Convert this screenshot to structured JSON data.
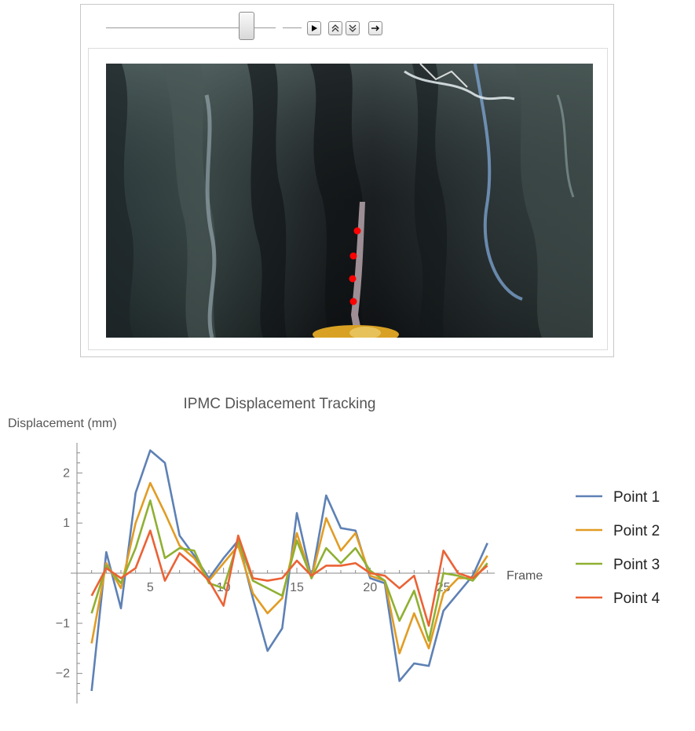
{
  "manipulate": {
    "slider_value_fraction": 0.83,
    "buttons": {
      "play_icon": "play-icon",
      "faster_icon": "double-chevron-up-icon",
      "slower_icon": "double-chevron-down-icon",
      "step_icon": "right-arrow-icon"
    }
  },
  "video": {
    "tracking_marker_color": "#ff0000",
    "tracked_points": 4
  },
  "chart_data": {
    "type": "line",
    "title": "IPMC Displacement Tracking",
    "ylabel": "Displacement (mm)",
    "xlabel": "Frame",
    "xlim": [
      0,
      28.5
    ],
    "ylim": [
      -2.6,
      2.6
    ],
    "xticks": [
      5,
      10,
      15,
      20,
      25
    ],
    "yticks": [
      -2,
      -1,
      1,
      2
    ],
    "legend_position": "right",
    "x": [
      1,
      2,
      3,
      4,
      5,
      6,
      7,
      8,
      9,
      10,
      11,
      12,
      13,
      14,
      15,
      16,
      17,
      18,
      19,
      20,
      21,
      22,
      23,
      24,
      25,
      26,
      27,
      28
    ],
    "series": [
      {
        "name": "Point 1",
        "color": "#5e81b5",
        "values": [
          -2.35,
          0.42,
          -0.7,
          1.6,
          2.45,
          2.2,
          0.75,
          0.35,
          -0.1,
          0.3,
          0.65,
          -0.5,
          -1.55,
          -1.1,
          1.2,
          -0.1,
          1.55,
          0.9,
          0.85,
          -0.1,
          -0.2,
          -2.15,
          -1.8,
          -1.85,
          -0.75,
          -0.4,
          -0.05,
          0.6
        ]
      },
      {
        "name": "Point 2",
        "color": "#e19c24",
        "values": [
          -1.4,
          0.2,
          -0.3,
          1.0,
          1.8,
          1.2,
          0.55,
          0.3,
          -0.15,
          0.2,
          0.55,
          -0.4,
          -0.8,
          -0.5,
          0.8,
          -0.1,
          1.1,
          0.45,
          0.8,
          -0.05,
          -0.15,
          -1.6,
          -0.8,
          -1.5,
          -0.4,
          -0.1,
          -0.1,
          0.35
        ]
      },
      {
        "name": "Point 3",
        "color": "#8fb032",
        "values": [
          -0.8,
          0.15,
          -0.2,
          0.5,
          1.45,
          0.3,
          0.5,
          0.45,
          -0.2,
          -0.3,
          0.65,
          -0.15,
          -0.3,
          -0.45,
          0.65,
          -0.1,
          0.5,
          0.2,
          0.5,
          0.05,
          -0.15,
          -0.95,
          -0.35,
          -1.35,
          0.0,
          -0.05,
          -0.15,
          0.2
        ]
      },
      {
        "name": "Point 4",
        "color": "#eb6235",
        "values": [
          -0.45,
          0.1,
          -0.1,
          0.1,
          0.85,
          -0.15,
          0.4,
          0.15,
          -0.15,
          -0.65,
          0.75,
          -0.1,
          -0.15,
          -0.1,
          0.25,
          -0.05,
          0.15,
          0.15,
          0.2,
          0.0,
          -0.05,
          -0.3,
          -0.05,
          -1.05,
          0.45,
          0.0,
          -0.1,
          0.15
        ]
      }
    ]
  }
}
